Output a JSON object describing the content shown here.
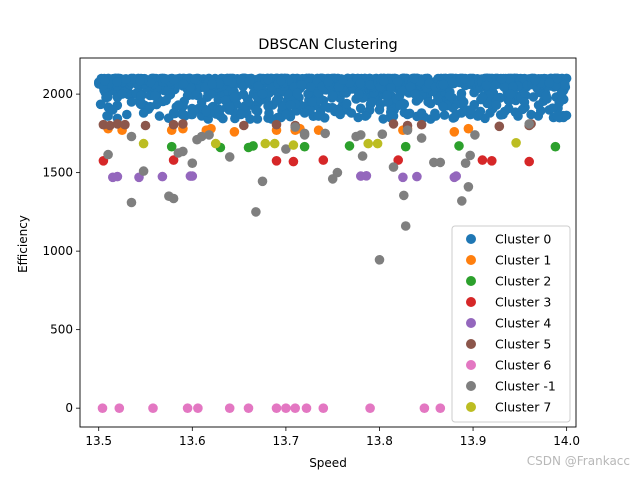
{
  "chart_data": {
    "type": "scatter",
    "title": "DBSCAN Clustering",
    "xlabel": "Speed",
    "ylabel": "Efficiency",
    "xlim": [
      13.48,
      14.01
    ],
    "ylim": [
      -120,
      2230
    ],
    "xticks": [
      "13.5",
      "13.6",
      "13.7",
      "13.8",
      "13.9",
      "14.0"
    ],
    "yticks": [
      "0",
      "500",
      "1000",
      "1500",
      "2000"
    ],
    "grid": false,
    "legend_position": "lower-right",
    "series": [
      {
        "name": "Cluster 0",
        "color": "#1f77b4",
        "band": {
          "x_min": 13.5,
          "x_max": 14.0,
          "y_min": 1840,
          "y_max": 2100
        },
        "points": [
          [
            13.502,
            1935
          ],
          [
            13.51,
            1860
          ],
          [
            13.515,
            1900
          ],
          [
            13.52,
            1980
          ],
          [
            13.525,
            2000
          ],
          [
            13.53,
            1870
          ],
          [
            13.535,
            1950
          ],
          [
            13.54,
            2005
          ],
          [
            13.548,
            1880
          ],
          [
            13.555,
            1920
          ],
          [
            13.56,
            1990
          ],
          [
            13.565,
            1860
          ],
          [
            13.572,
            1960
          ],
          [
            13.58,
            1880
          ],
          [
            13.585,
            1930
          ],
          [
            13.595,
            1990
          ],
          [
            13.6,
            1870
          ],
          [
            13.61,
            1950
          ],
          [
            13.615,
            1890
          ],
          [
            13.62,
            2000
          ],
          [
            13.63,
            1860
          ],
          [
            13.64,
            1920
          ],
          [
            13.645,
            1980
          ],
          [
            13.652,
            1870
          ],
          [
            13.66,
            1950
          ],
          [
            13.668,
            1900
          ],
          [
            13.675,
            2000
          ],
          [
            13.682,
            1880
          ],
          [
            13.69,
            1960
          ],
          [
            13.7,
            1870
          ],
          [
            13.705,
            1930
          ],
          [
            13.712,
            2005
          ],
          [
            13.72,
            1880
          ],
          [
            13.728,
            1950
          ],
          [
            13.735,
            1860
          ],
          [
            13.742,
            1920
          ],
          [
            13.75,
            1990
          ],
          [
            13.758,
            1870
          ],
          [
            13.765,
            1940
          ],
          [
            13.77,
            1880
          ],
          [
            13.778,
            2000
          ],
          [
            13.785,
            1860
          ],
          [
            13.792,
            1950
          ],
          [
            13.8,
            1900
          ],
          [
            13.808,
            1990
          ],
          [
            13.815,
            1860
          ],
          [
            13.822,
            1930
          ],
          [
            13.83,
            1870
          ],
          [
            13.838,
            2000
          ],
          [
            13.845,
            1880
          ],
          [
            13.852,
            1950
          ],
          [
            13.86,
            1860
          ],
          [
            13.868,
            1920
          ],
          [
            13.875,
            1990
          ],
          [
            13.882,
            1870
          ],
          [
            13.89,
            1950
          ],
          [
            13.898,
            1900
          ],
          [
            13.905,
            1860
          ],
          [
            13.91,
            1980
          ],
          [
            13.918,
            1880
          ],
          [
            13.925,
            1930
          ],
          [
            13.932,
            1870
          ],
          [
            13.94,
            2000
          ],
          [
            13.948,
            1860
          ],
          [
            13.955,
            1950
          ],
          [
            13.962,
            1870
          ],
          [
            13.97,
            1930
          ],
          [
            13.978,
            1990
          ],
          [
            13.985,
            1910
          ],
          [
            13.99,
            1860
          ],
          [
            13.995,
            2010
          ],
          [
            13.998,
            2060
          ],
          [
            13.99,
            2100
          ],
          [
            13.545,
            1990
          ]
        ]
      },
      {
        "name": "Cluster 1",
        "color": "#ff7f0e",
        "points": [
          [
            13.51,
            1780
          ],
          [
            13.525,
            1770
          ],
          [
            13.578,
            1770
          ],
          [
            13.59,
            1780
          ],
          [
            13.615,
            1770
          ],
          [
            13.62,
            1780
          ],
          [
            13.645,
            1760
          ],
          [
            13.69,
            1770
          ],
          [
            13.71,
            1770
          ],
          [
            13.715,
            1780
          ],
          [
            13.735,
            1770
          ],
          [
            13.825,
            1770
          ],
          [
            13.83,
            1780
          ],
          [
            13.88,
            1760
          ],
          [
            13.895,
            1780
          ]
        ]
      },
      {
        "name": "Cluster 2",
        "color": "#2ca02c",
        "points": [
          [
            13.578,
            1665
          ],
          [
            13.63,
            1660
          ],
          [
            13.66,
            1660
          ],
          [
            13.665,
            1670
          ],
          [
            13.72,
            1665
          ],
          [
            13.768,
            1670
          ],
          [
            13.828,
            1665
          ],
          [
            13.885,
            1670
          ],
          [
            13.988,
            1665
          ]
        ]
      },
      {
        "name": "Cluster 3",
        "color": "#d62728",
        "points": [
          [
            13.505,
            1575
          ],
          [
            13.58,
            1580
          ],
          [
            13.69,
            1575
          ],
          [
            13.708,
            1570
          ],
          [
            13.74,
            1580
          ],
          [
            13.82,
            1580
          ],
          [
            13.91,
            1580
          ],
          [
            13.92,
            1575
          ],
          [
            13.96,
            1570
          ]
        ]
      },
      {
        "name": "Cluster 4",
        "color": "#9467bd",
        "points": [
          [
            13.515,
            1470
          ],
          [
            13.52,
            1475
          ],
          [
            13.543,
            1470
          ],
          [
            13.568,
            1475
          ],
          [
            13.598,
            1478
          ],
          [
            13.6,
            1478
          ],
          [
            13.78,
            1478
          ],
          [
            13.786,
            1480
          ],
          [
            13.825,
            1470
          ],
          [
            13.84,
            1475
          ],
          [
            13.88,
            1470
          ],
          [
            13.882,
            1478
          ]
        ]
      },
      {
        "name": "Cluster 5",
        "color": "#8c564b",
        "points": [
          [
            13.505,
            1805
          ],
          [
            13.512,
            1800
          ],
          [
            13.52,
            1810
          ],
          [
            13.528,
            1805
          ],
          [
            13.55,
            1800
          ],
          [
            13.58,
            1805
          ],
          [
            13.59,
            1810
          ],
          [
            13.655,
            1800
          ],
          [
            13.69,
            1805
          ],
          [
            13.71,
            1800
          ],
          [
            13.815,
            1810
          ],
          [
            13.83,
            1800
          ],
          [
            13.845,
            1805
          ],
          [
            13.928,
            1795
          ],
          [
            13.96,
            1800
          ],
          [
            13.962,
            1810
          ]
        ]
      },
      {
        "name": "Cluster 6",
        "color": "#e377c2",
        "points": [
          [
            13.504,
            0
          ],
          [
            13.522,
            0
          ],
          [
            13.558,
            0
          ],
          [
            13.595,
            0
          ],
          [
            13.606,
            0
          ],
          [
            13.64,
            0
          ],
          [
            13.66,
            0
          ],
          [
            13.69,
            0
          ],
          [
            13.7,
            0
          ],
          [
            13.71,
            0
          ],
          [
            13.722,
            0
          ],
          [
            13.74,
            0
          ],
          [
            13.79,
            0
          ],
          [
            13.848,
            0
          ],
          [
            13.865,
            0
          ]
        ]
      },
      {
        "name": "Cluster -1",
        "color": "#7f7f7f",
        "points": [
          [
            13.51,
            1615
          ],
          [
            13.535,
            1730
          ],
          [
            13.535,
            1310
          ],
          [
            13.548,
            1510
          ],
          [
            13.575,
            1350
          ],
          [
            13.58,
            1335
          ],
          [
            13.585,
            1625
          ],
          [
            13.59,
            1635
          ],
          [
            13.6,
            1560
          ],
          [
            13.605,
            1710
          ],
          [
            13.61,
            1730
          ],
          [
            13.618,
            1740
          ],
          [
            13.64,
            1600
          ],
          [
            13.668,
            1250
          ],
          [
            13.675,
            1445
          ],
          [
            13.7,
            1650
          ],
          [
            13.71,
            1790
          ],
          [
            13.72,
            1740
          ],
          [
            13.72,
            1750
          ],
          [
            13.742,
            1750
          ],
          [
            13.75,
            1460
          ],
          [
            13.755,
            1500
          ],
          [
            13.775,
            1730
          ],
          [
            13.78,
            1740
          ],
          [
            13.782,
            1605
          ],
          [
            13.8,
            945
          ],
          [
            13.803,
            1745
          ],
          [
            13.815,
            1535
          ],
          [
            13.826,
            1355
          ],
          [
            13.828,
            1160
          ],
          [
            13.83,
            1770
          ],
          [
            13.845,
            1720
          ],
          [
            13.858,
            1565
          ],
          [
            13.865,
            1565
          ],
          [
            13.888,
            1320
          ],
          [
            13.892,
            1560
          ],
          [
            13.895,
            1410
          ],
          [
            13.897,
            1610
          ],
          [
            13.902,
            1740
          ],
          [
            13.96,
            1810
          ]
        ]
      },
      {
        "name": "Cluster 7",
        "color": "#bcbd22",
        "points": [
          [
            13.548,
            1685
          ],
          [
            13.625,
            1685
          ],
          [
            13.678,
            1685
          ],
          [
            13.688,
            1685
          ],
          [
            13.708,
            1675
          ],
          [
            13.788,
            1685
          ],
          [
            13.798,
            1685
          ],
          [
            13.946,
            1690
          ]
        ]
      }
    ]
  },
  "watermark": "CSDN @Frankacc"
}
